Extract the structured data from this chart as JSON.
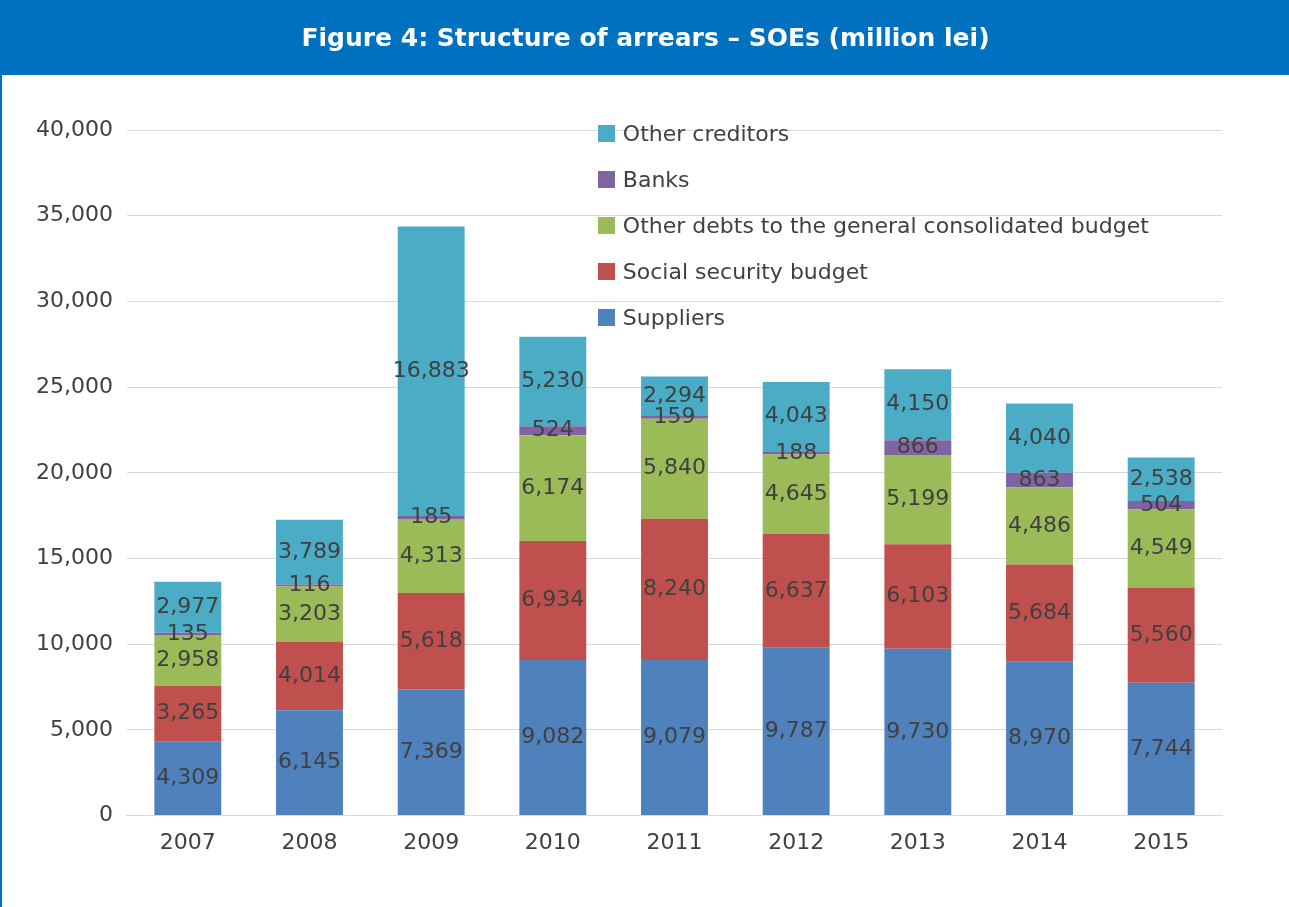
{
  "chart_data": {
    "type": "bar",
    "title": "Figure  4: Structure of arrears – SOEs (million lei)",
    "stacked": true,
    "grid": "y",
    "legend": "top right",
    "categories": [
      "2007",
      "2008",
      "2009",
      "2010",
      "2011",
      "2012",
      "2013",
      "2014",
      "2015"
    ],
    "ylim": [
      0,
      40000
    ],
    "yticks": [
      {
        "value": 0,
        "label": "0"
      },
      {
        "value": 5000,
        "label": "5,000"
      },
      {
        "value": 10000,
        "label": "10,000"
      },
      {
        "value": 15000,
        "label": "15,000"
      },
      {
        "value": 20000,
        "label": "20,000"
      },
      {
        "value": 25000,
        "label": "25,000"
      },
      {
        "value": 30000,
        "label": "30,000"
      },
      {
        "value": 35000,
        "label": "35,000"
      },
      {
        "value": 40000,
        "label": "40,000"
      }
    ],
    "series": [
      {
        "name": "Suppliers",
        "color": "#4f81bd",
        "values": [
          4309,
          6145,
          7369,
          9082,
          9079,
          9787,
          9730,
          8970,
          7744
        ],
        "value_labels": [
          "4,309",
          "6,145",
          "7,369",
          "9,082",
          "9,079",
          "9,787",
          "9,730",
          "8,970",
          "7,744"
        ]
      },
      {
        "name": "Social security budget",
        "color": "#c0504d",
        "values": [
          3265,
          4014,
          5618,
          6934,
          8240,
          6637,
          6103,
          5684,
          5560
        ],
        "value_labels": [
          "3,265",
          "4,014",
          "5,618",
          "6,934",
          "8,240",
          "6,637",
          "6,103",
          "5,684",
          "5,560"
        ]
      },
      {
        "name": "Other debts to the general consolidated budget",
        "color": "#9bbb59",
        "values": [
          2958,
          3203,
          4313,
          6174,
          5840,
          4645,
          5199,
          4486,
          4549
        ],
        "value_labels": [
          "2,958",
          "3,203",
          "4,313",
          "6,174",
          "5,840",
          "4,645",
          "5,199",
          "4,486",
          "4,549"
        ]
      },
      {
        "name": "Banks",
        "color": "#8064a2",
        "values": [
          135,
          116,
          185,
          524,
          159,
          188,
          866,
          863,
          504
        ],
        "value_labels": [
          "135",
          "116",
          "185",
          "524",
          "159",
          "188",
          "866",
          "863",
          "504"
        ]
      },
      {
        "name": "Other creditors",
        "color": "#4bacc6",
        "values": [
          2977,
          3789,
          16883,
          5230,
          2294,
          4043,
          4150,
          4040,
          2538
        ],
        "value_labels": [
          "2,977",
          "3,789",
          "16,883",
          "5,230",
          "2,294",
          "4,043",
          "4,150",
          "4,040",
          "2,538"
        ]
      }
    ]
  }
}
